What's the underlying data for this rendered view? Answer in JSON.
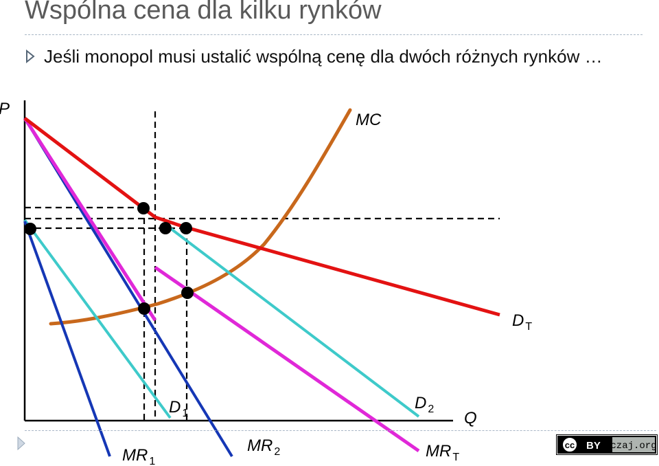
{
  "slide": {
    "title": "Wspólna cena dla kilku rynków",
    "bullet": "Jeśli monopol musi ustalić wspólną cenę dla dwóch różnych rynków …"
  },
  "diagram": {
    "axis_y": "P",
    "axis_x": "Q",
    "curves": {
      "mc": {
        "label": "MC",
        "color": "#c8681c"
      },
      "dt": {
        "label": "D",
        "sub": "T",
        "color": "#e31212"
      },
      "d1": {
        "label": "D",
        "sub": "1",
        "color": "#3ecaca"
      },
      "d2": {
        "label": "D",
        "sub": "2",
        "color": "#3ecaca"
      },
      "mr1": {
        "label": "MR",
        "sub": "1",
        "color": "#1537b5"
      },
      "mr2": {
        "label": "MR",
        "sub": "2",
        "color": "#1537b5"
      },
      "mrt": {
        "label": "MR",
        "sub": "T",
        "color": "#e028d8"
      }
    }
  },
  "license": {
    "cc": "cc",
    "by": "BY",
    "site": "czaj.org"
  }
}
